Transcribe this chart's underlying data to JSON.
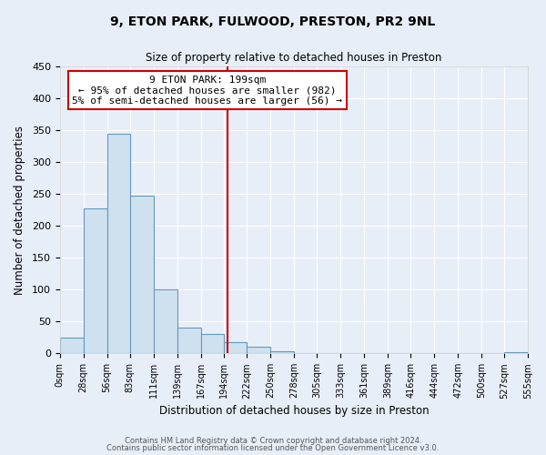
{
  "title": "9, ETON PARK, FULWOOD, PRESTON, PR2 9NL",
  "subtitle": "Size of property relative to detached houses in Preston",
  "xlabel": "Distribution of detached houses by size in Preston",
  "ylabel": "Number of detached properties",
  "bar_color": "#cfe0ee",
  "bar_edgecolor": "#6699bb",
  "background_color": "#e8eef8",
  "vline_x": 199,
  "vline_color": "#cc0000",
  "annotation_title": "9 ETON PARK: 199sqm",
  "annotation_line1": "← 95% of detached houses are smaller (982)",
  "annotation_line2": "5% of semi-detached houses are larger (56) →",
  "annotation_box_edgecolor": "#cc0000",
  "bin_edges": [
    0,
    28,
    56,
    83,
    111,
    139,
    167,
    194,
    222,
    250,
    278,
    305,
    333,
    361,
    389,
    416,
    444,
    472,
    500,
    527,
    555
  ],
  "bin_counts": [
    25,
    228,
    345,
    247,
    101,
    41,
    30,
    17,
    11,
    3,
    0,
    0,
    0,
    0,
    0,
    0,
    0,
    0,
    0,
    2
  ],
  "ylim": [
    0,
    450
  ],
  "yticks": [
    0,
    50,
    100,
    150,
    200,
    250,
    300,
    350,
    400,
    450
  ],
  "footer1": "Contains HM Land Registry data © Crown copyright and database right 2024.",
  "footer2": "Contains public sector information licensed under the Open Government Licence v3.0."
}
